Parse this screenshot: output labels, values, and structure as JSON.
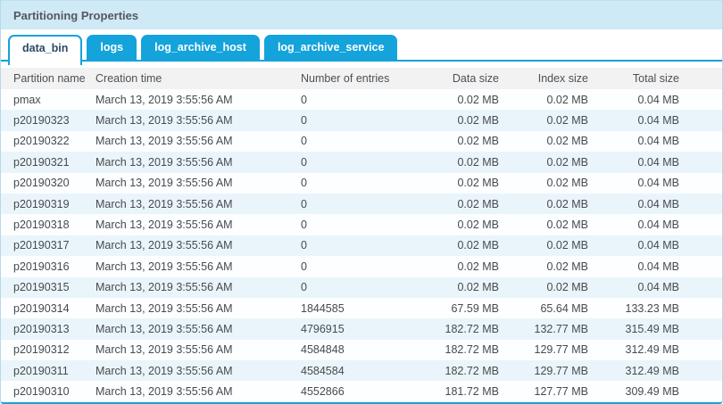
{
  "panel": {
    "title": "Partitioning Properties"
  },
  "tabs": [
    {
      "label": "data_bin",
      "active": true
    },
    {
      "label": "logs",
      "active": false
    },
    {
      "label": "log_archive_host",
      "active": false
    },
    {
      "label": "log_archive_service",
      "active": false
    }
  ],
  "table": {
    "columns": [
      "Partition name",
      "Creation time",
      "Number of entries",
      "Data size",
      "Index size",
      "Total size"
    ],
    "rows": [
      {
        "name": "pmax",
        "creation_time": "March 13, 2019 3:55:56 AM",
        "entries": "0",
        "data_size": "0.02 MB",
        "index_size": "0.02 MB",
        "total_size": "0.04 MB"
      },
      {
        "name": "p20190323",
        "creation_time": "March 13, 2019 3:55:56 AM",
        "entries": "0",
        "data_size": "0.02 MB",
        "index_size": "0.02 MB",
        "total_size": "0.04 MB"
      },
      {
        "name": "p20190322",
        "creation_time": "March 13, 2019 3:55:56 AM",
        "entries": "0",
        "data_size": "0.02 MB",
        "index_size": "0.02 MB",
        "total_size": "0.04 MB"
      },
      {
        "name": "p20190321",
        "creation_time": "March 13, 2019 3:55:56 AM",
        "entries": "0",
        "data_size": "0.02 MB",
        "index_size": "0.02 MB",
        "total_size": "0.04 MB"
      },
      {
        "name": "p20190320",
        "creation_time": "March 13, 2019 3:55:56 AM",
        "entries": "0",
        "data_size": "0.02 MB",
        "index_size": "0.02 MB",
        "total_size": "0.04 MB"
      },
      {
        "name": "p20190319",
        "creation_time": "March 13, 2019 3:55:56 AM",
        "entries": "0",
        "data_size": "0.02 MB",
        "index_size": "0.02 MB",
        "total_size": "0.04 MB"
      },
      {
        "name": "p20190318",
        "creation_time": "March 13, 2019 3:55:56 AM",
        "entries": "0",
        "data_size": "0.02 MB",
        "index_size": "0.02 MB",
        "total_size": "0.04 MB"
      },
      {
        "name": "p20190317",
        "creation_time": "March 13, 2019 3:55:56 AM",
        "entries": "0",
        "data_size": "0.02 MB",
        "index_size": "0.02 MB",
        "total_size": "0.04 MB"
      },
      {
        "name": "p20190316",
        "creation_time": "March 13, 2019 3:55:56 AM",
        "entries": "0",
        "data_size": "0.02 MB",
        "index_size": "0.02 MB",
        "total_size": "0.04 MB"
      },
      {
        "name": "p20190315",
        "creation_time": "March 13, 2019 3:55:56 AM",
        "entries": "0",
        "data_size": "0.02 MB",
        "index_size": "0.02 MB",
        "total_size": "0.04 MB"
      },
      {
        "name": "p20190314",
        "creation_time": "March 13, 2019 3:55:56 AM",
        "entries": "1844585",
        "data_size": "67.59 MB",
        "index_size": "65.64 MB",
        "total_size": "133.23 MB"
      },
      {
        "name": "p20190313",
        "creation_time": "March 13, 2019 3:55:56 AM",
        "entries": "4796915",
        "data_size": "182.72 MB",
        "index_size": "132.77 MB",
        "total_size": "315.49 MB"
      },
      {
        "name": "p20190312",
        "creation_time": "March 13, 2019 3:55:56 AM",
        "entries": "4584848",
        "data_size": "182.72 MB",
        "index_size": "129.77 MB",
        "total_size": "312.49 MB"
      },
      {
        "name": "p20190311",
        "creation_time": "March 13, 2019 3:55:56 AM",
        "entries": "4584584",
        "data_size": "182.72 MB",
        "index_size": "129.77 MB",
        "total_size": "312.49 MB"
      },
      {
        "name": "p20190310",
        "creation_time": "March 13, 2019 3:55:56 AM",
        "entries": "4552866",
        "data_size": "181.72 MB",
        "index_size": "127.77 MB",
        "total_size": "309.49 MB"
      }
    ]
  },
  "colors": {
    "accent_cyan": "#14a3da",
    "titlebar_bg": "#cfe9f6",
    "row_stripe": "#eaf5fb",
    "header_bg": "#f2f2f2"
  }
}
